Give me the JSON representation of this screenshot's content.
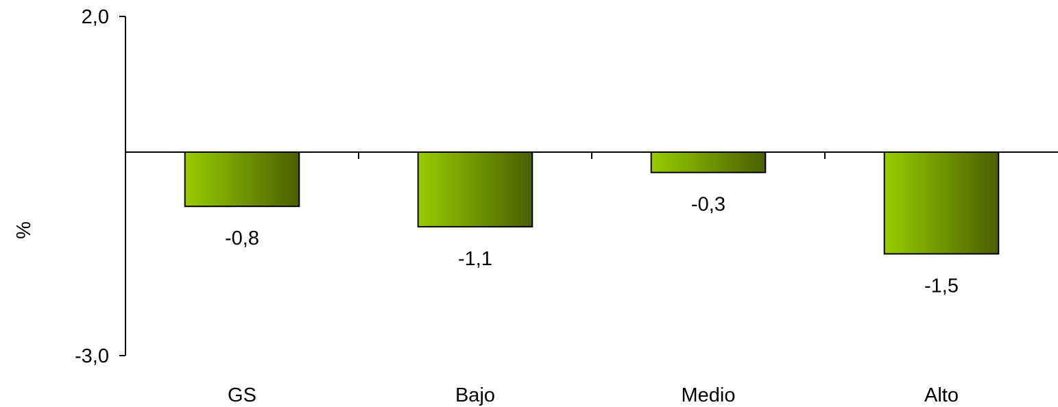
{
  "chart_data": {
    "type": "bar",
    "title": "",
    "xlabel": "",
    "ylabel": "%",
    "categories": [
      "GS",
      "Bajo",
      "Medio",
      "Alto"
    ],
    "values": [
      -0.8,
      -1.1,
      -0.3,
      -1.5
    ],
    "value_labels": [
      "-0,8",
      "-1,1",
      "-0,3",
      "-1,5"
    ],
    "ylim": [
      -3.0,
      2.0
    ],
    "yticks": [
      2.0,
      -3.0
    ],
    "ytick_labels": [
      "2,0",
      "-3,0"
    ],
    "grid": false,
    "legend": "none",
    "colors": {
      "bar_light": "#99CC00",
      "bar_dark": "#4A5F00",
      "axis": "#000000"
    }
  }
}
